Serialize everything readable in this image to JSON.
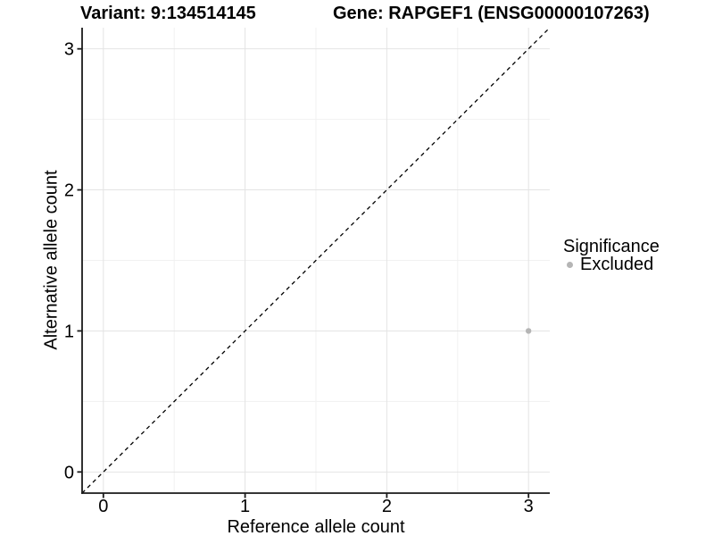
{
  "titles": {
    "left": "Variant: 9:134514145",
    "right": "Gene: RAPGEF1 (ENSG00000107263)"
  },
  "chart_data": {
    "type": "scatter",
    "title_left": "Variant: 9:134514145",
    "title_right": "Gene: RAPGEF1 (ENSG00000107263)",
    "xlabel": "Reference allele count",
    "ylabel": "Alternative allele count",
    "xlim": [
      -0.15,
      3.15
    ],
    "ylim": [
      -0.15,
      3.15
    ],
    "x_ticks": [
      0,
      1,
      2,
      3
    ],
    "y_ticks": [
      0,
      1,
      2,
      3
    ],
    "x_minor_ticks": [
      0.5,
      1.5,
      2.5
    ],
    "y_minor_ticks": [
      0.5,
      1.5,
      2.5
    ],
    "grid": "major-and-minor",
    "points": [
      {
        "x": 3,
        "y": 1,
        "series": "Excluded"
      }
    ],
    "identity_line": {
      "style": "dashed",
      "from": [
        -0.15,
        -0.15
      ],
      "to": [
        3.15,
        3.15
      ],
      "color": "#000000"
    },
    "legend": {
      "title": "Significance",
      "position": "right",
      "entries": [
        {
          "label": "Excluded",
          "color": "#b5b5b5"
        }
      ]
    },
    "colors": {
      "background": "#ffffff",
      "major_grid": "#e4e4e4",
      "minor_grid": "#f1f1f1",
      "axis": "#1a1a1a",
      "point": "#b5b5b5",
      "text": "#000000"
    }
  }
}
